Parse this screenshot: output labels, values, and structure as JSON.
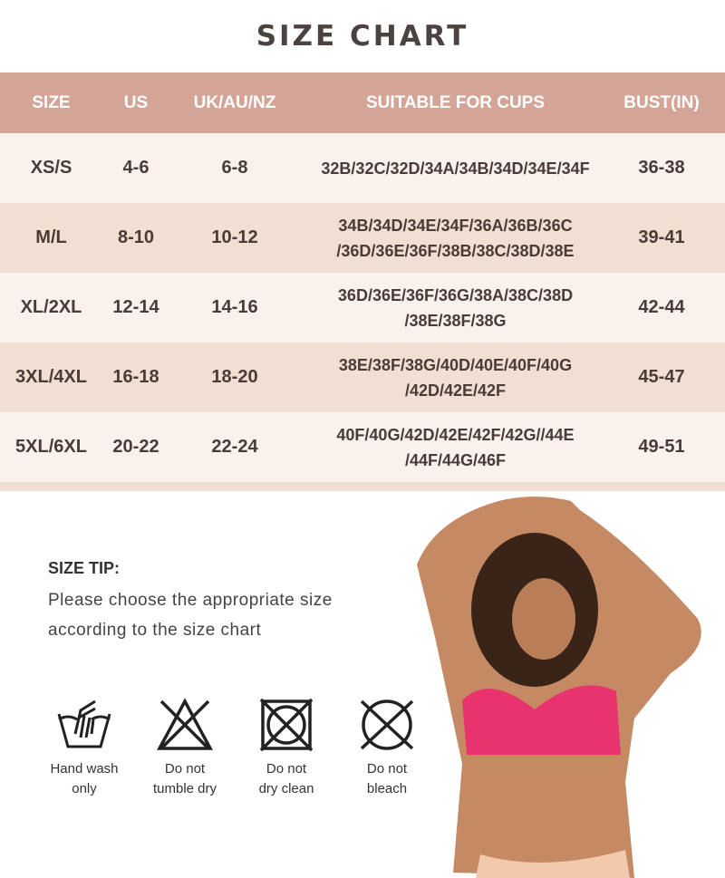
{
  "title": "SIZE CHART",
  "table": {
    "headers": [
      "SIZE",
      "US",
      "UK/AU/NZ",
      "SUITABLE FOR CUPS",
      "BUST(IN)"
    ],
    "rows": [
      {
        "size": "XS/S",
        "us": "4-6",
        "uk": "6-8",
        "cups1": "32B/32C/32D/34A/34B/34D/34E/34F",
        "cups2": "",
        "bust": "36-38"
      },
      {
        "size": "M/L",
        "us": "8-10",
        "uk": "10-12",
        "cups1": "34B/34D/34E/34F/36A/36B/36C",
        "cups2": "/36D/36E/36F/38B/38C/38D/38E",
        "bust": "39-41"
      },
      {
        "size": "XL/2XL",
        "us": "12-14",
        "uk": "14-16",
        "cups1": "36D/36E/36F/36G/38A/38C/38D",
        "cups2": "/38E/38F/38G",
        "bust": "42-44"
      },
      {
        "size": "3XL/4XL",
        "us": "16-18",
        "uk": "18-20",
        "cups1": "38E/38F/38G/40D/40E/40F/40G",
        "cups2": "/42D/42E/42F",
        "bust": "45-47"
      },
      {
        "size": "5XL/6XL",
        "us": "20-22",
        "uk": "22-24",
        "cups1": "40F/40G/42D/42E/42F/42G//44E",
        "cups2": "/44F/44G/46F",
        "bust": "49-51"
      }
    ]
  },
  "tip": {
    "heading": "SIZE TIP:",
    "line1": "Please choose the appropriate size",
    "line2": "according to the size chart"
  },
  "care": [
    {
      "icon": "hand-wash-icon",
      "line1": "Hand wash",
      "line2": "only"
    },
    {
      "icon": "no-tumble-dry-icon",
      "line1": "Do not",
      "line2": "tumble dry"
    },
    {
      "icon": "no-dry-clean-icon",
      "line1": "Do not",
      "line2": "dry clean"
    },
    {
      "icon": "no-bleach-icon",
      "line1": "Do not",
      "line2": "bleach"
    }
  ],
  "colors": {
    "header": "#d4a597",
    "row_light": "#f8f1ec",
    "row_dark": "#f1dfd3",
    "bra": "#e8336f"
  }
}
